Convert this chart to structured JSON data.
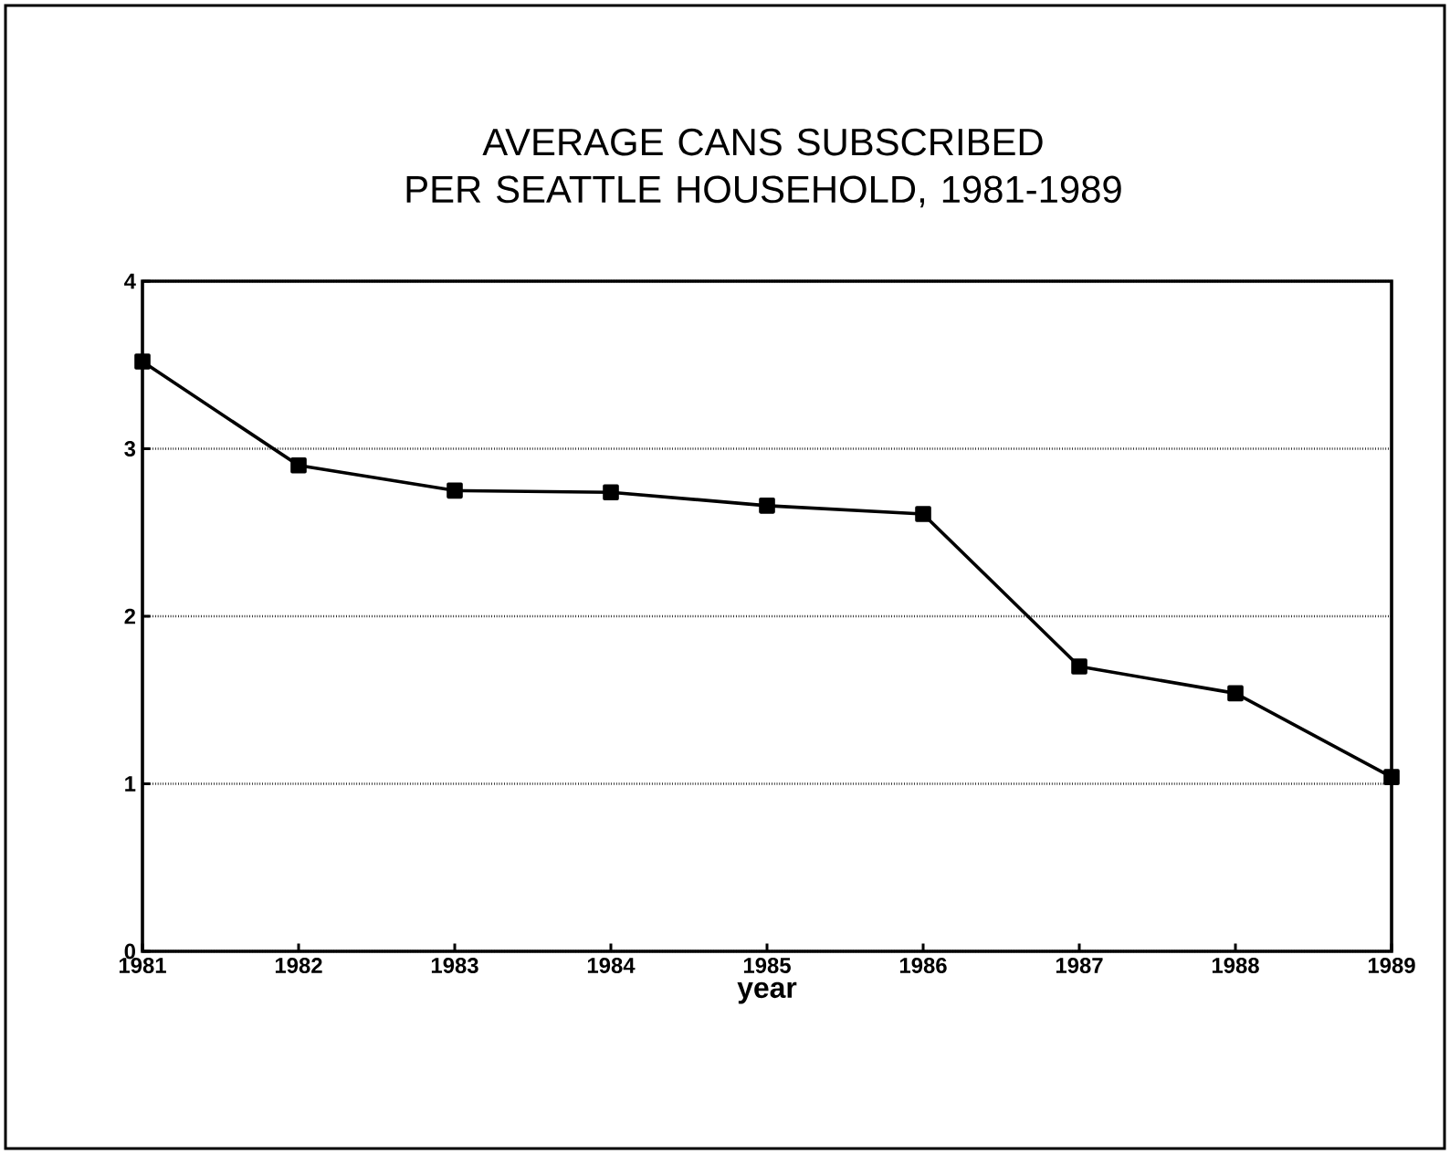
{
  "chart_data": {
    "type": "line",
    "title": "AVERAGE CANS SUBSCRIBED\nPER SEATTLE HOUSEHOLD, 1981-1989",
    "xlabel": "year",
    "categories": [
      "1981",
      "1982",
      "1983",
      "1984",
      "1985",
      "1986",
      "1987",
      "1988",
      "1989"
    ],
    "values": [
      3.52,
      2.9,
      2.75,
      2.74,
      2.66,
      2.61,
      1.7,
      1.54,
      1.04
    ],
    "color": "#000000",
    "ylim": [
      0,
      4
    ],
    "yticks": [
      0,
      1,
      2,
      3,
      4
    ],
    "grid": "y",
    "marker": "square",
    "line_style": "solid"
  }
}
